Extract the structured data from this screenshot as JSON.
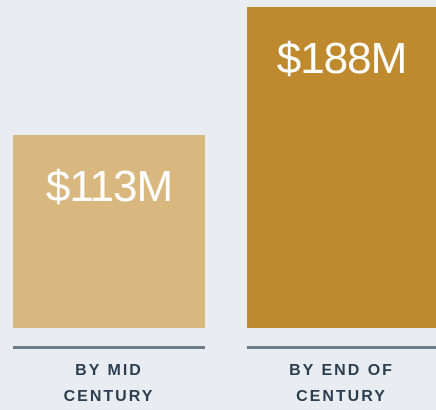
{
  "chart_data": {
    "type": "bar",
    "categories": [
      "BY MID CENTURY",
      "BY END OF CENTURY"
    ],
    "values": [
      113,
      188
    ],
    "value_labels": [
      "$113M",
      "$188M"
    ],
    "colors": [
      "#d9b880",
      "#bf8a2e"
    ]
  }
}
